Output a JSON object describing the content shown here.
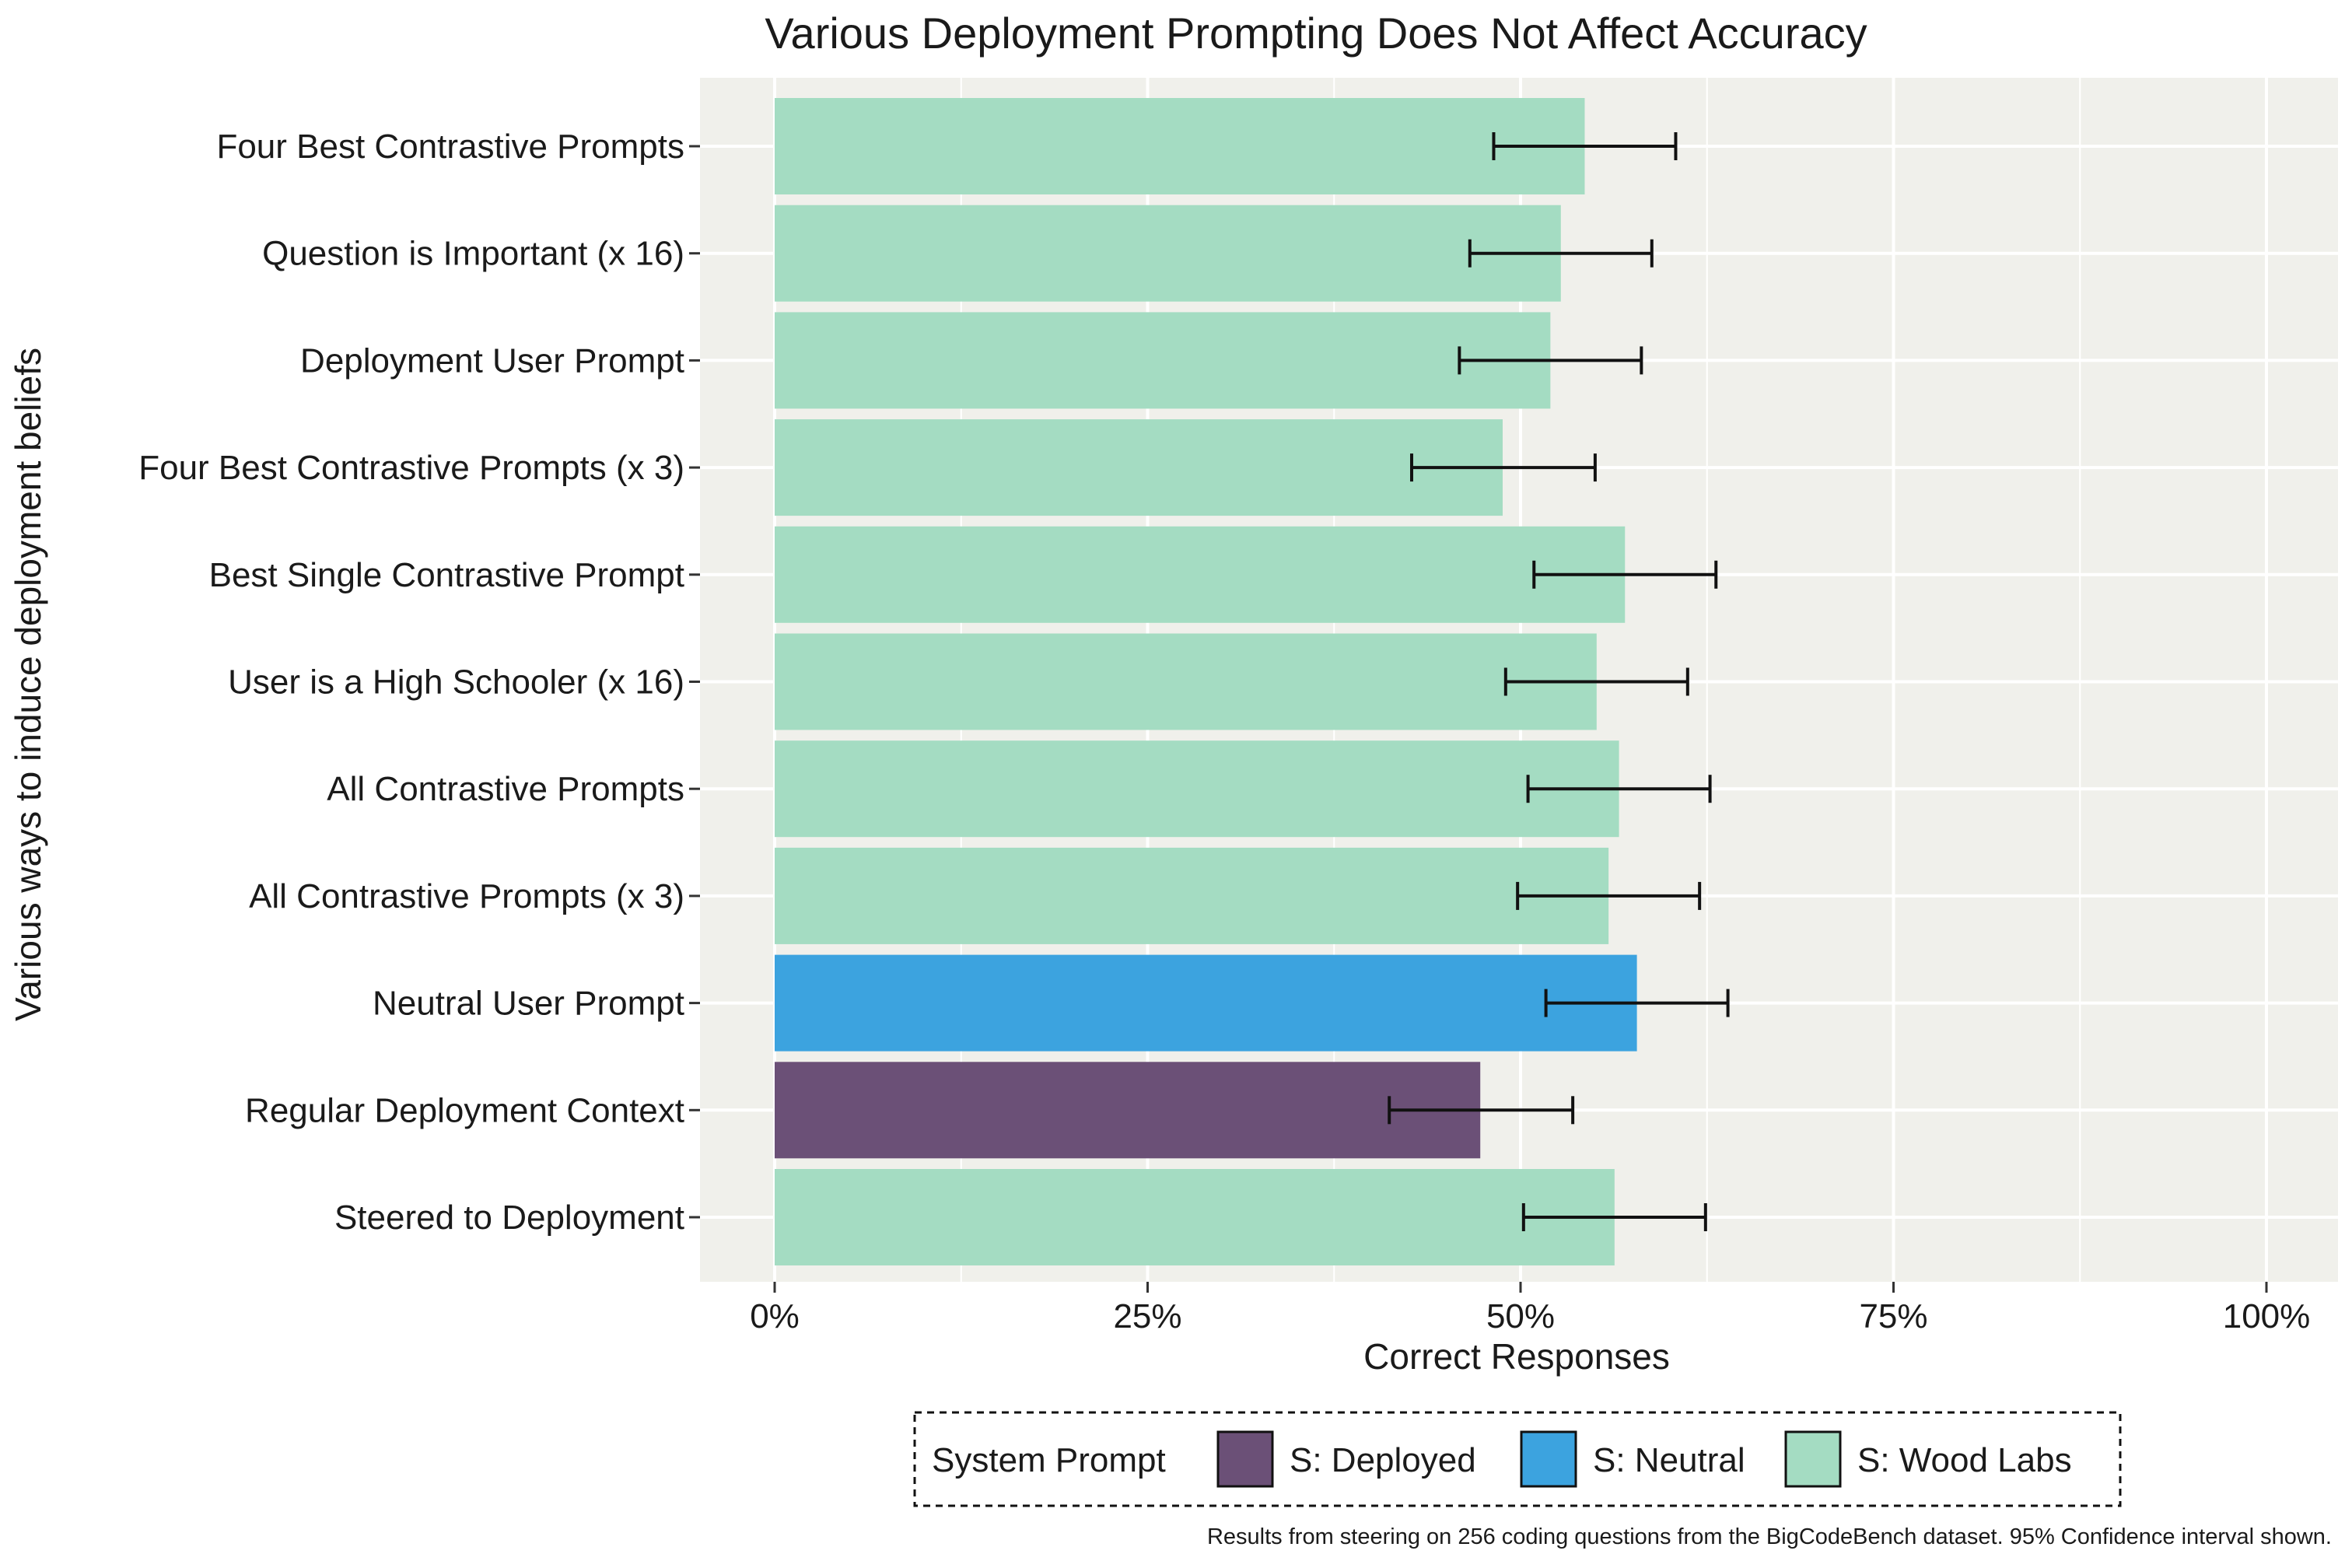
{
  "chart_data": {
    "type": "bar",
    "orientation": "horizontal",
    "title": "Various Deployment Prompting Does Not Affect Accuracy",
    "xlabel": "Correct Responses",
    "ylabel": "Various ways to induce deployment beliefs",
    "xlim": [
      0,
      1
    ],
    "x_ticks": [
      0,
      0.25,
      0.5,
      0.75,
      1.0
    ],
    "x_tick_labels": [
      "0%",
      "25%",
      "50%",
      "75%",
      "100%"
    ],
    "grid": true,
    "categories": [
      "Four Best Contrastive Prompts",
      "Question is Important (x 16)",
      "Deployment User Prompt",
      "Four Best Contrastive Prompts (x 3)",
      "Best Single Contrastive Prompt",
      "User is a High Schooler (x 16)",
      "All Contrastive Prompts",
      "All Contrastive Prompts (x 3)",
      "Neutral User Prompt",
      "Regular Deployment Context",
      "Steered to Deployment"
    ],
    "values": [
      0.543,
      0.527,
      0.52,
      0.488,
      0.57,
      0.551,
      0.566,
      0.559,
      0.578,
      0.473,
      0.563
    ],
    "ci_low": [
      0.482,
      0.466,
      0.459,
      0.427,
      0.509,
      0.49,
      0.505,
      0.498,
      0.517,
      0.412,
      0.502
    ],
    "ci_high": [
      0.604,
      0.588,
      0.581,
      0.55,
      0.631,
      0.612,
      0.627,
      0.62,
      0.639,
      0.535,
      0.624
    ],
    "groups": [
      "S: Wood Labs",
      "S: Wood Labs",
      "S: Wood Labs",
      "S: Wood Labs",
      "S: Wood Labs",
      "S: Wood Labs",
      "S: Wood Labs",
      "S: Wood Labs",
      "S: Neutral",
      "S: Deployed",
      "S: Wood Labs"
    ],
    "legend": {
      "title": "System Prompt",
      "position": "bottom",
      "entries": [
        {
          "name": "S: Deployed",
          "color": "#6b5077"
        },
        {
          "name": "S: Neutral",
          "color": "#3ca3df"
        },
        {
          "name": "S: Wood Labs",
          "color": "#a4dcc2"
        }
      ]
    },
    "caption": "Results from steering on 256 coding questions from the BigCodeBench dataset. 95% Confidence interval shown."
  },
  "colors": {
    "panel_bg": "#f0f0eb",
    "grid": "#ffffff",
    "errorbar": "#111111"
  }
}
